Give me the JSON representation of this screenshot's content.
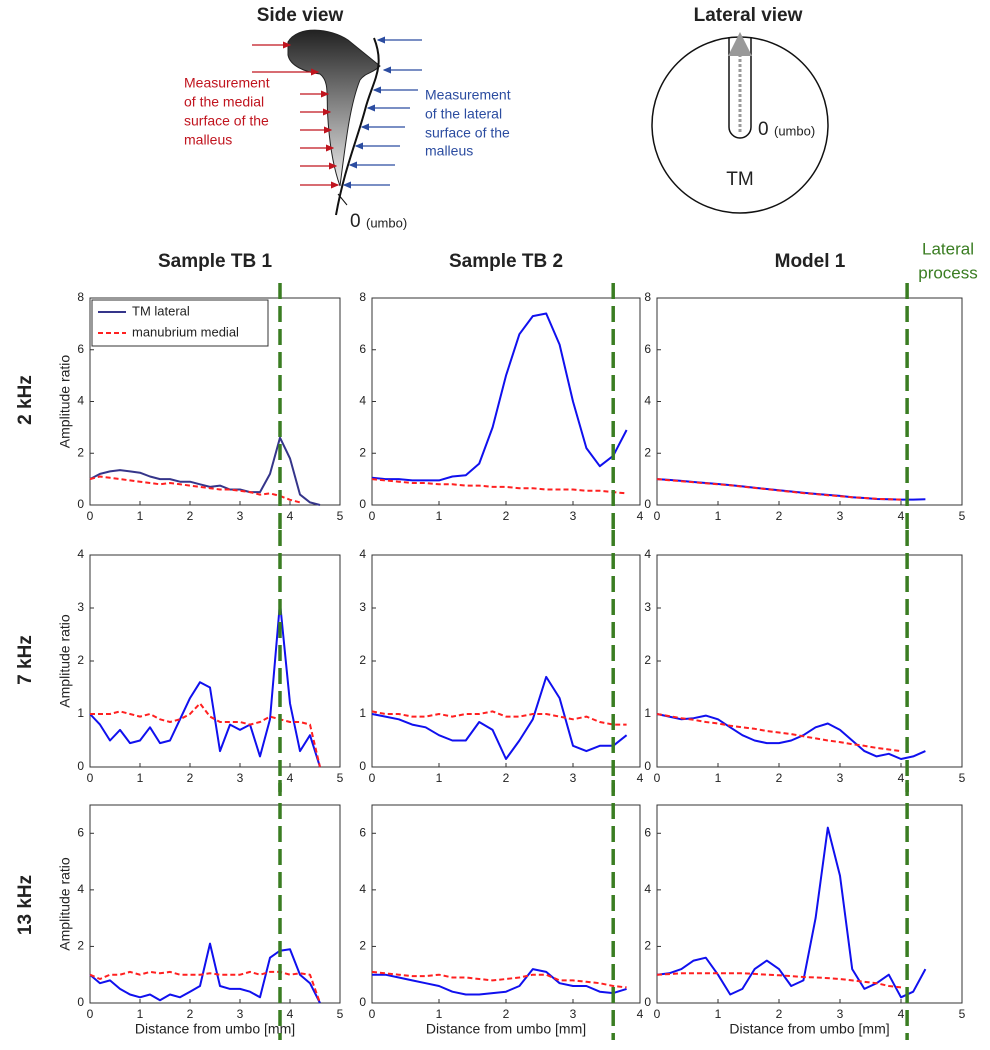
{
  "side_view": {
    "title": "Side view",
    "medial_label": [
      "Measurement",
      "of the medial",
      "surface of the",
      "malleus"
    ],
    "lateral_label": [
      "Measurement",
      "of the lateral",
      "surface of the",
      "malleus"
    ],
    "origin": "0",
    "origin_note": "(umbo)"
  },
  "lateral_view": {
    "title": "Lateral view",
    "origin": "0",
    "origin_note": "(umbo)",
    "membrane": "TM"
  },
  "column_titles": [
    "Sample TB 1",
    "Sample TB 2",
    "Model 1"
  ],
  "row_labels": [
    "2 kHz",
    "7 kHz",
    "13 kHz"
  ],
  "lateral_process_label": [
    "Lateral",
    "process"
  ],
  "chart_data": [
    {
      "type": "line",
      "ylabel": "Amplitude ratio",
      "legend": "upper left",
      "x": [
        0,
        0.2,
        0.4,
        0.6,
        0.8,
        1.0,
        1.2,
        1.4,
        1.6,
        1.8,
        2.0,
        2.2,
        2.4,
        2.6,
        2.8,
        3.0,
        3.2,
        3.4,
        3.6,
        3.8,
        4.0,
        4.2,
        4.4,
        4.6
      ],
      "xlim": [
        0,
        5
      ],
      "xticks": [
        0,
        1,
        2,
        3,
        4,
        5
      ],
      "ylim": [
        0,
        8
      ],
      "yticks": [
        0,
        2,
        4,
        6,
        8
      ],
      "lateral_process_x": 3.8,
      "lateral_process_color": "#3a7d22",
      "series": [
        {
          "name": "TM lateral",
          "color": "#35358a",
          "line_style": "solid",
          "values": [
            1.0,
            1.2,
            1.3,
            1.35,
            1.3,
            1.25,
            1.1,
            1.0,
            1.0,
            0.9,
            0.9,
            0.8,
            0.7,
            0.75,
            0.6,
            0.6,
            0.5,
            0.5,
            1.2,
            2.6,
            1.8,
            0.4,
            0.1,
            0.0
          ]
        },
        {
          "name": "manubrium medial",
          "color": "#ff2020",
          "line_style": "dashed",
          "values": [
            1.0,
            1.1,
            1.05,
            1.0,
            0.95,
            0.9,
            0.85,
            0.8,
            0.85,
            0.8,
            0.75,
            0.7,
            0.65,
            0.6,
            0.6,
            0.55,
            0.5,
            0.4,
            0.45,
            0.35,
            0.2,
            0.1,
            null,
            null
          ]
        }
      ]
    },
    {
      "type": "line",
      "x": [
        0,
        0.2,
        0.4,
        0.6,
        0.8,
        1.0,
        1.2,
        1.4,
        1.6,
        1.8,
        2.0,
        2.2,
        2.4,
        2.6,
        2.8,
        3.0,
        3.2,
        3.4,
        3.6,
        3.8
      ],
      "xlim": [
        0,
        4
      ],
      "xticks": [
        0,
        1,
        2,
        3,
        4
      ],
      "ylim": [
        0,
        8
      ],
      "yticks": [
        0,
        2,
        4,
        6,
        8
      ],
      "lateral_process_x": 3.6,
      "lateral_process_color": "#3a7d22",
      "series": [
        {
          "color": "#1010ee",
          "line_style": "solid",
          "values": [
            1.05,
            1.0,
            1.0,
            0.95,
            0.95,
            0.95,
            1.1,
            1.15,
            1.6,
            3.0,
            5.0,
            6.6,
            7.3,
            7.4,
            6.2,
            4.0,
            2.2,
            1.5,
            1.9,
            2.9
          ]
        },
        {
          "color": "#ff2020",
          "line_style": "dashed",
          "values": [
            1.0,
            0.95,
            0.9,
            0.85,
            0.85,
            0.8,
            0.8,
            0.75,
            0.75,
            0.7,
            0.7,
            0.65,
            0.65,
            0.6,
            0.6,
            0.6,
            0.55,
            0.55,
            0.5,
            0.45
          ]
        }
      ]
    },
    {
      "type": "line",
      "x": [
        0,
        0.2,
        0.4,
        0.6,
        0.8,
        1.0,
        1.2,
        1.4,
        1.6,
        1.8,
        2.0,
        2.2,
        2.4,
        2.6,
        2.8,
        3.0,
        3.2,
        3.4,
        3.6,
        3.8,
        4.0,
        4.2,
        4.4
      ],
      "xlim": [
        0,
        5
      ],
      "xticks": [
        0,
        1,
        2,
        3,
        4,
        5
      ],
      "ylim": [
        0,
        8
      ],
      "yticks": [
        0,
        2,
        4,
        6,
        8
      ],
      "lateral_process_x": 4.1,
      "lateral_process_color": "#3a7d22",
      "series": [
        {
          "color": "#1010ee",
          "line_style": "solid",
          "values": [
            1.0,
            0.97,
            0.93,
            0.89,
            0.85,
            0.81,
            0.77,
            0.72,
            0.67,
            0.62,
            0.57,
            0.52,
            0.47,
            0.43,
            0.39,
            0.35,
            0.3,
            0.27,
            0.23,
            0.22,
            0.21,
            0.21,
            0.22
          ]
        },
        {
          "color": "#ff2020",
          "line_style": "dashed",
          "values": [
            1.0,
            0.96,
            0.92,
            0.88,
            0.84,
            0.8,
            0.76,
            0.71,
            0.66,
            0.61,
            0.56,
            0.51,
            0.46,
            0.42,
            0.38,
            0.34,
            0.3,
            0.27,
            0.24,
            0.22,
            0.21,
            null,
            null
          ]
        }
      ]
    },
    {
      "type": "line",
      "ylabel": "Amplitude ratio",
      "x": [
        0,
        0.2,
        0.4,
        0.6,
        0.8,
        1.0,
        1.2,
        1.4,
        1.6,
        1.8,
        2.0,
        2.2,
        2.4,
        2.6,
        2.8,
        3.0,
        3.2,
        3.4,
        3.6,
        3.8,
        4.0,
        4.2,
        4.4,
        4.6
      ],
      "xlim": [
        0,
        5
      ],
      "xticks": [
        0,
        1,
        2,
        3,
        4,
        5
      ],
      "ylim": [
        0,
        4
      ],
      "yticks": [
        0,
        1,
        2,
        3,
        4
      ],
      "lateral_process_x": 3.8,
      "lateral_process_color": "#3a7d22",
      "series": [
        {
          "color": "#1010ee",
          "line_style": "solid",
          "values": [
            1.0,
            0.8,
            0.5,
            0.7,
            0.45,
            0.5,
            0.75,
            0.45,
            0.5,
            0.9,
            1.3,
            1.6,
            1.5,
            0.3,
            0.8,
            0.7,
            0.8,
            0.2,
            0.9,
            3.1,
            1.2,
            0.3,
            0.6,
            0.0
          ]
        },
        {
          "color": "#ff2020",
          "line_style": "dashed",
          "values": [
            1.0,
            1.0,
            1.0,
            1.05,
            1.0,
            0.95,
            1.0,
            0.9,
            0.85,
            0.9,
            1.0,
            1.2,
            0.95,
            0.85,
            0.85,
            0.85,
            0.8,
            0.85,
            0.95,
            0.9,
            0.85,
            0.85,
            0.8,
            0.0
          ]
        }
      ]
    },
    {
      "type": "line",
      "x": [
        0,
        0.2,
        0.4,
        0.6,
        0.8,
        1.0,
        1.2,
        1.4,
        1.6,
        1.8,
        2.0,
        2.2,
        2.4,
        2.6,
        2.8,
        3.0,
        3.2,
        3.4,
        3.6,
        3.8
      ],
      "xlim": [
        0,
        4
      ],
      "xticks": [
        0,
        1,
        2,
        3,
        4
      ],
      "ylim": [
        0,
        4
      ],
      "yticks": [
        0,
        1,
        2,
        3,
        4
      ],
      "lateral_process_x": 3.6,
      "lateral_process_color": "#3a7d22",
      "series": [
        {
          "color": "#1010ee",
          "line_style": "solid",
          "values": [
            1.0,
            0.95,
            0.9,
            0.8,
            0.75,
            0.6,
            0.5,
            0.5,
            0.85,
            0.7,
            0.15,
            0.5,
            0.9,
            1.7,
            1.3,
            0.4,
            0.3,
            0.4,
            0.4,
            0.6
          ]
        },
        {
          "color": "#ff2020",
          "line_style": "dashed",
          "values": [
            1.05,
            1.0,
            1.0,
            0.95,
            0.95,
            1.0,
            0.95,
            1.0,
            1.0,
            1.05,
            0.95,
            0.95,
            1.0,
            1.0,
            0.95,
            0.9,
            0.95,
            0.85,
            0.8,
            0.8
          ]
        }
      ]
    },
    {
      "type": "line",
      "x": [
        0,
        0.2,
        0.4,
        0.6,
        0.8,
        1.0,
        1.2,
        1.4,
        1.6,
        1.8,
        2.0,
        2.2,
        2.4,
        2.6,
        2.8,
        3.0,
        3.2,
        3.4,
        3.6,
        3.8,
        4.0,
        4.2,
        4.4
      ],
      "xlim": [
        0,
        5
      ],
      "xticks": [
        0,
        1,
        2,
        3,
        4,
        5
      ],
      "ylim": [
        0,
        4
      ],
      "yticks": [
        0,
        1,
        2,
        3,
        4
      ],
      "lateral_process_x": 4.1,
      "lateral_process_color": "#3a7d22",
      "series": [
        {
          "color": "#1010ee",
          "line_style": "solid",
          "values": [
            1.0,
            0.95,
            0.9,
            0.92,
            0.97,
            0.9,
            0.75,
            0.6,
            0.5,
            0.45,
            0.45,
            0.5,
            0.6,
            0.75,
            0.82,
            0.7,
            0.5,
            0.3,
            0.2,
            0.25,
            0.15,
            0.2,
            0.3
          ]
        },
        {
          "color": "#ff2020",
          "line_style": "dashed",
          "values": [
            1.0,
            0.96,
            0.92,
            0.89,
            0.85,
            0.82,
            0.78,
            0.75,
            0.72,
            0.68,
            0.65,
            0.62,
            0.58,
            0.54,
            0.5,
            0.47,
            0.43,
            0.4,
            0.36,
            0.33,
            0.3,
            null,
            null
          ]
        }
      ]
    },
    {
      "type": "line",
      "ylabel": "Amplitude ratio",
      "xlabel": "Distance from umbo [mm]",
      "x": [
        0,
        0.2,
        0.4,
        0.6,
        0.8,
        1.0,
        1.2,
        1.4,
        1.6,
        1.8,
        2.0,
        2.2,
        2.4,
        2.6,
        2.8,
        3.0,
        3.2,
        3.4,
        3.6,
        3.8,
        4.0,
        4.2,
        4.4,
        4.6
      ],
      "xlim": [
        0,
        5
      ],
      "xticks": [
        0,
        1,
        2,
        3,
        4,
        5
      ],
      "ylim": [
        0,
        7
      ],
      "yticks": [
        0,
        2,
        4,
        6
      ],
      "lateral_process_x": 3.8,
      "lateral_process_color": "#3a7d22",
      "series": [
        {
          "color": "#1010ee",
          "line_style": "solid",
          "values": [
            1.0,
            0.7,
            0.8,
            0.5,
            0.3,
            0.2,
            0.3,
            0.1,
            0.3,
            0.2,
            0.4,
            0.6,
            2.1,
            0.6,
            0.5,
            0.5,
            0.4,
            0.2,
            1.6,
            1.85,
            1.9,
            1.0,
            0.7,
            0.0
          ]
        },
        {
          "color": "#ff2020",
          "line_style": "dashed",
          "values": [
            1.0,
            0.85,
            1.0,
            1.0,
            1.1,
            1.0,
            1.1,
            1.05,
            1.1,
            1.0,
            1.0,
            1.0,
            1.05,
            1.0,
            1.0,
            1.0,
            1.1,
            1.0,
            1.1,
            1.1,
            1.0,
            1.05,
            1.0,
            0.0
          ]
        }
      ]
    },
    {
      "type": "line",
      "xlabel": "Distance from umbo [mm]",
      "x": [
        0,
        0.2,
        0.4,
        0.6,
        0.8,
        1.0,
        1.2,
        1.4,
        1.6,
        1.8,
        2.0,
        2.2,
        2.4,
        2.6,
        2.8,
        3.0,
        3.2,
        3.4,
        3.6,
        3.8
      ],
      "xlim": [
        0,
        4
      ],
      "xticks": [
        0,
        1,
        2,
        3,
        4
      ],
      "ylim": [
        0,
        7
      ],
      "yticks": [
        0,
        2,
        4,
        6
      ],
      "lateral_process_x": 3.6,
      "lateral_process_color": "#3a7d22",
      "series": [
        {
          "color": "#1010ee",
          "line_style": "solid",
          "values": [
            1.0,
            1.0,
            0.9,
            0.8,
            0.7,
            0.6,
            0.4,
            0.3,
            0.3,
            0.35,
            0.4,
            0.6,
            1.2,
            1.1,
            0.7,
            0.6,
            0.6,
            0.4,
            0.35,
            0.5
          ]
        },
        {
          "color": "#ff2020",
          "line_style": "dashed",
          "values": [
            1.1,
            1.05,
            1.0,
            0.95,
            0.95,
            1.0,
            0.9,
            0.9,
            0.85,
            0.8,
            0.85,
            0.9,
            1.0,
            1.0,
            0.8,
            0.8,
            0.75,
            0.7,
            0.6,
            0.55
          ]
        }
      ]
    },
    {
      "type": "line",
      "xlabel": "Distance from umbo [mm]",
      "x": [
        0,
        0.2,
        0.4,
        0.6,
        0.8,
        1.0,
        1.2,
        1.4,
        1.6,
        1.8,
        2.0,
        2.2,
        2.4,
        2.6,
        2.8,
        3.0,
        3.2,
        3.4,
        3.6,
        3.8,
        4.0,
        4.2,
        4.4
      ],
      "xlim": [
        0,
        5
      ],
      "xticks": [
        0,
        1,
        2,
        3,
        4,
        5
      ],
      "ylim": [
        0,
        7
      ],
      "yticks": [
        0,
        2,
        4,
        6
      ],
      "lateral_process_x": 4.1,
      "lateral_process_color": "#3a7d22",
      "series": [
        {
          "color": "#1010ee",
          "line_style": "solid",
          "values": [
            1.0,
            1.05,
            1.2,
            1.5,
            1.6,
            1.0,
            0.3,
            0.5,
            1.2,
            1.5,
            1.2,
            0.6,
            0.8,
            3.0,
            6.2,
            4.5,
            1.2,
            0.5,
            0.7,
            1.0,
            0.2,
            0.4,
            1.2
          ]
        },
        {
          "color": "#ff2020",
          "line_style": "dashed",
          "values": [
            1.0,
            1.02,
            1.05,
            1.05,
            1.05,
            1.05,
            1.05,
            1.05,
            1.03,
            1.0,
            0.98,
            0.95,
            0.92,
            0.9,
            0.88,
            0.85,
            0.8,
            0.75,
            0.7,
            0.6,
            0.55,
            null,
            null
          ]
        }
      ]
    }
  ]
}
